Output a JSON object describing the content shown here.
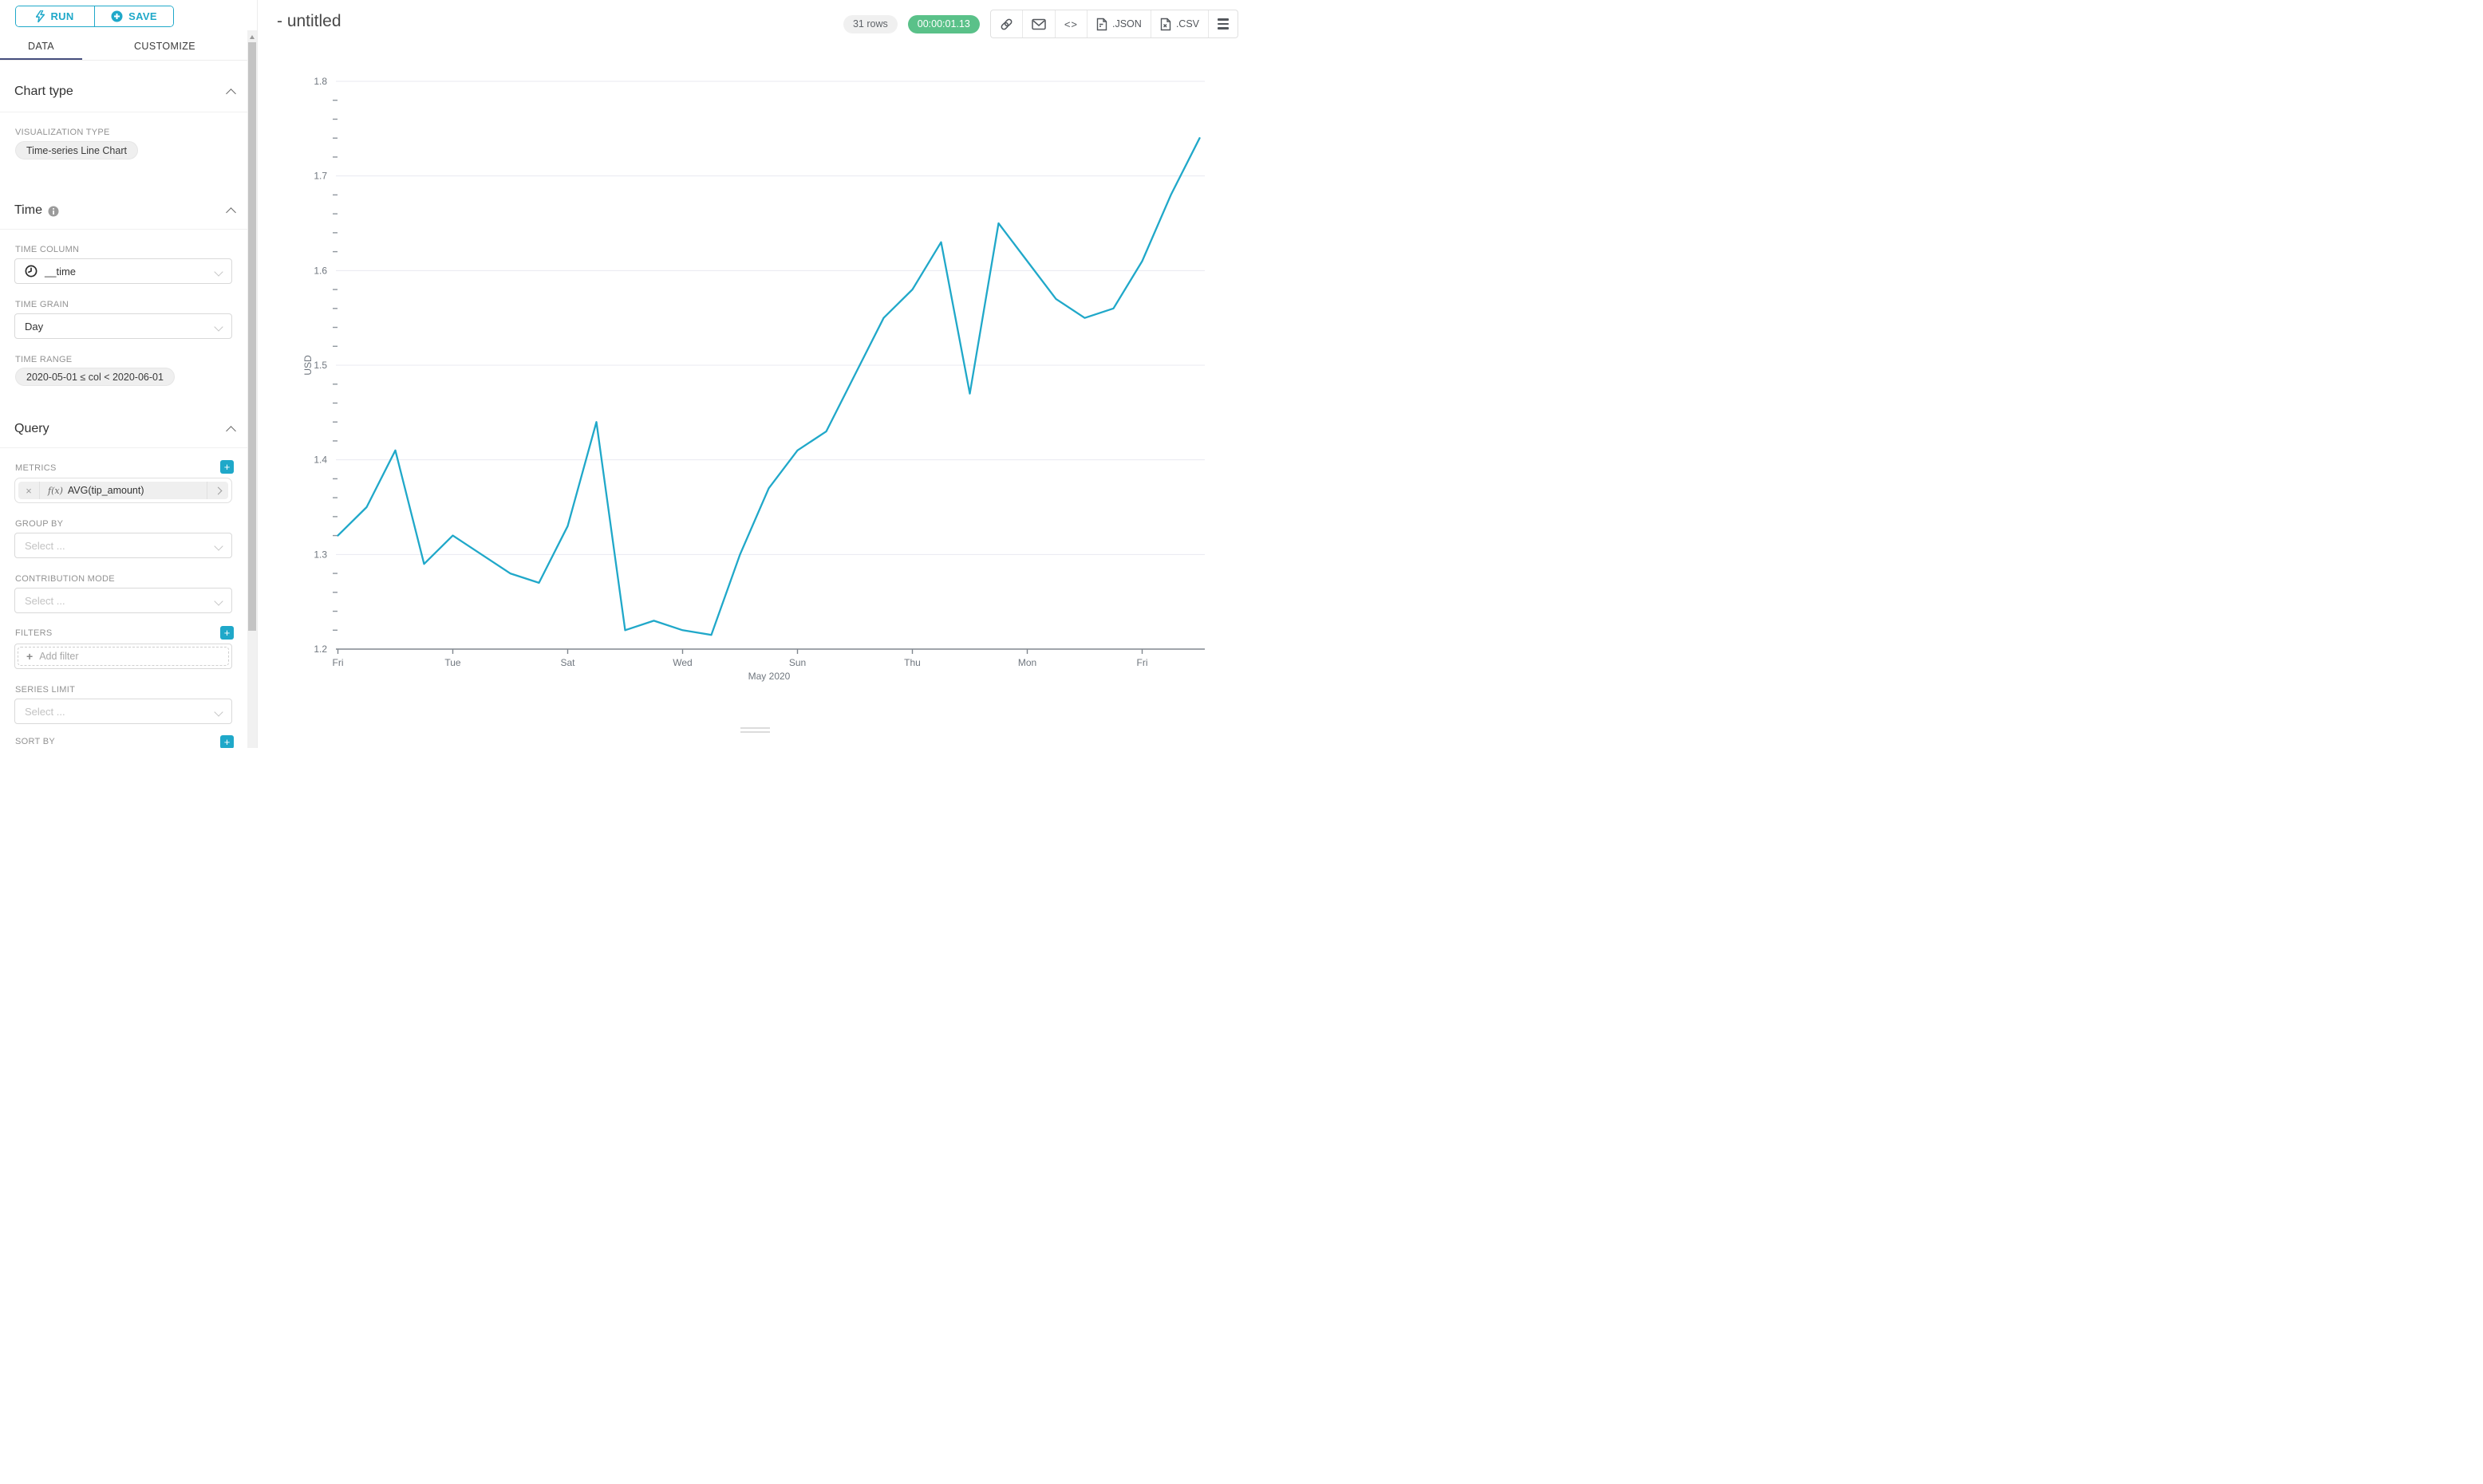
{
  "colors": {
    "primary_teal": "#1FA8C9",
    "success_green": "#5AC189",
    "tab_indicator": "#454E7D",
    "line": "#20A8C9",
    "grid": "#E8EAF1",
    "axis": "#80878F",
    "tick_text": "#6F767E"
  },
  "sidebar": {
    "run_label": "RUN",
    "save_label": "SAVE",
    "tabs": [
      {
        "label": "DATA"
      },
      {
        "label": "CUSTOMIZE"
      }
    ],
    "chart_type": {
      "title": "Chart type",
      "viz_label": "VISUALIZATION TYPE",
      "viz_value": "Time-series Line Chart"
    },
    "time": {
      "title": "Time",
      "column_label": "TIME COLUMN",
      "column_value": "__time",
      "grain_label": "TIME GRAIN",
      "grain_value": "Day",
      "range_label": "TIME RANGE",
      "range_value": "2020-05-01 ≤ col < 2020-06-01"
    },
    "query": {
      "title": "Query",
      "metrics_label": "METRICS",
      "metric_fx": "f(x)",
      "metric_remove": "×",
      "metric_value": "AVG(tip_amount)",
      "group_by_label": "GROUP BY",
      "select_placeholder": "Select ...",
      "contribution_label": "CONTRIBUTION MODE",
      "filters_label": "FILTERS",
      "add_filter_label": "Add filter",
      "series_limit_label": "SERIES LIMIT",
      "sort_by_label": "SORT BY"
    }
  },
  "header": {
    "title": "- untitled",
    "rows_badge": "31 rows",
    "timer_badge": "00:00:01.13",
    "code_glyph": "<>",
    "json_label": ".JSON",
    "csv_label": ".CSV"
  },
  "chart_data": {
    "type": "line",
    "series_name": "AVG(tip_amount)",
    "x": [
      "2020-05-01",
      "2020-05-02",
      "2020-05-03",
      "2020-05-04",
      "2020-05-05",
      "2020-05-06",
      "2020-05-07",
      "2020-05-08",
      "2020-05-09",
      "2020-05-10",
      "2020-05-11",
      "2020-05-12",
      "2020-05-13",
      "2020-05-14",
      "2020-05-15",
      "2020-05-16",
      "2020-05-17",
      "2020-05-18",
      "2020-05-19",
      "2020-05-20",
      "2020-05-21",
      "2020-05-22",
      "2020-05-23",
      "2020-05-24",
      "2020-05-25",
      "2020-05-26",
      "2020-05-27",
      "2020-05-28",
      "2020-05-29",
      "2020-05-30",
      "2020-05-31"
    ],
    "values": [
      1.32,
      1.35,
      1.41,
      1.29,
      1.32,
      1.3,
      1.28,
      1.27,
      1.33,
      1.44,
      1.22,
      1.23,
      1.22,
      1.215,
      1.3,
      1.37,
      1.41,
      1.43,
      1.49,
      1.55,
      1.58,
      1.63,
      1.47,
      1.65,
      1.61,
      1.57,
      1.55,
      1.56,
      1.61,
      1.68,
      1.74
    ],
    "ylabel": "USD",
    "xlabel": "May 2020",
    "ylim": [
      1.2,
      1.8
    ],
    "y_ticks": [
      1.2,
      1.3,
      1.4,
      1.5,
      1.6,
      1.7,
      1.8
    ],
    "x_tick_days": [
      1,
      5,
      9,
      13,
      17,
      21,
      25,
      29
    ],
    "x_tick_labels": [
      "Fri",
      "Tue",
      "Sat",
      "Wed",
      "Sun",
      "Thu",
      "Mon",
      "Fri"
    ],
    "grid": "on",
    "legend": "off"
  }
}
